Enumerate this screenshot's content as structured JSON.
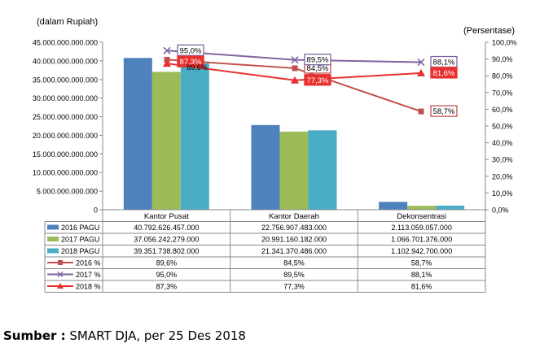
{
  "chart_data": {
    "type": "bar",
    "left_axis_label": "(dalam Rupiah)",
    "right_axis_label": "(Persentase)",
    "categories": [
      "Kantor Pusat",
      "Kantor Daerah",
      "Dekonsentrasi"
    ],
    "left_ylim": [
      0,
      45000000000000
    ],
    "right_ylim": [
      0,
      100
    ],
    "left_ticks": [
      "0",
      "5.000.000.000.000",
      "10.000.000.000.000",
      "15.000.000.000.000",
      "20.000.000.000.000",
      "25.000.000.000.000",
      "30.000.000.000.000",
      "35.000.000.000.000",
      "40.000.000.000.000",
      "45.000.000.000.000"
    ],
    "right_ticks": [
      "0,0%",
      "10,0%",
      "20,0%",
      "30,0%",
      "40,0%",
      "50,0%",
      "60,0%",
      "70,0%",
      "80,0%",
      "90,0%",
      "100,0%"
    ],
    "bar_series": [
      {
        "name": "2016 PAGU",
        "color": "#4F81BD",
        "values": [
          40792626457000,
          22756907483000,
          2113059057000
        ],
        "labels": [
          "40.792.626.457.000",
          "22.756.907.483.000",
          "2.113.059.057.000"
        ]
      },
      {
        "name": "2017 PAGU",
        "color": "#9BBB59",
        "values": [
          37056242279000,
          20991160182000,
          1066701376000
        ],
        "labels": [
          "37.056.242.279.000",
          "20.991.160.182.000",
          "1.066.701.376.000"
        ]
      },
      {
        "name": "2018 PAGU",
        "color": "#4BACC6",
        "values": [
          39351738802000,
          21341370486000,
          1102942700000
        ],
        "labels": [
          "39.351.738.802.000",
          "21.341.370.486.000",
          "1.102.942.700.000"
        ]
      }
    ],
    "line_series": [
      {
        "name": "2016 %",
        "color": "#C0504D",
        "marker": "square",
        "values": [
          89.6,
          84.5,
          58.7
        ],
        "labels": [
          "89,6%",
          "84,5%",
          "58,7%"
        ]
      },
      {
        "name": "2017 %",
        "color": "#8064A2",
        "marker": "x",
        "values": [
          95.0,
          89.5,
          88.1
        ],
        "labels": [
          "95,0%",
          "89,5%",
          "88,1%"
        ]
      },
      {
        "name": "2018 %",
        "color": "#E8312F",
        "marker": "triangle",
        "values": [
          87.3,
          77.3,
          81.6
        ],
        "labels": [
          "87,3%",
          "77,3%",
          "81,6%"
        ]
      }
    ]
  },
  "source": {
    "label": "Sumber :",
    "text": " SMART DJA, per 25 Des 2018"
  }
}
